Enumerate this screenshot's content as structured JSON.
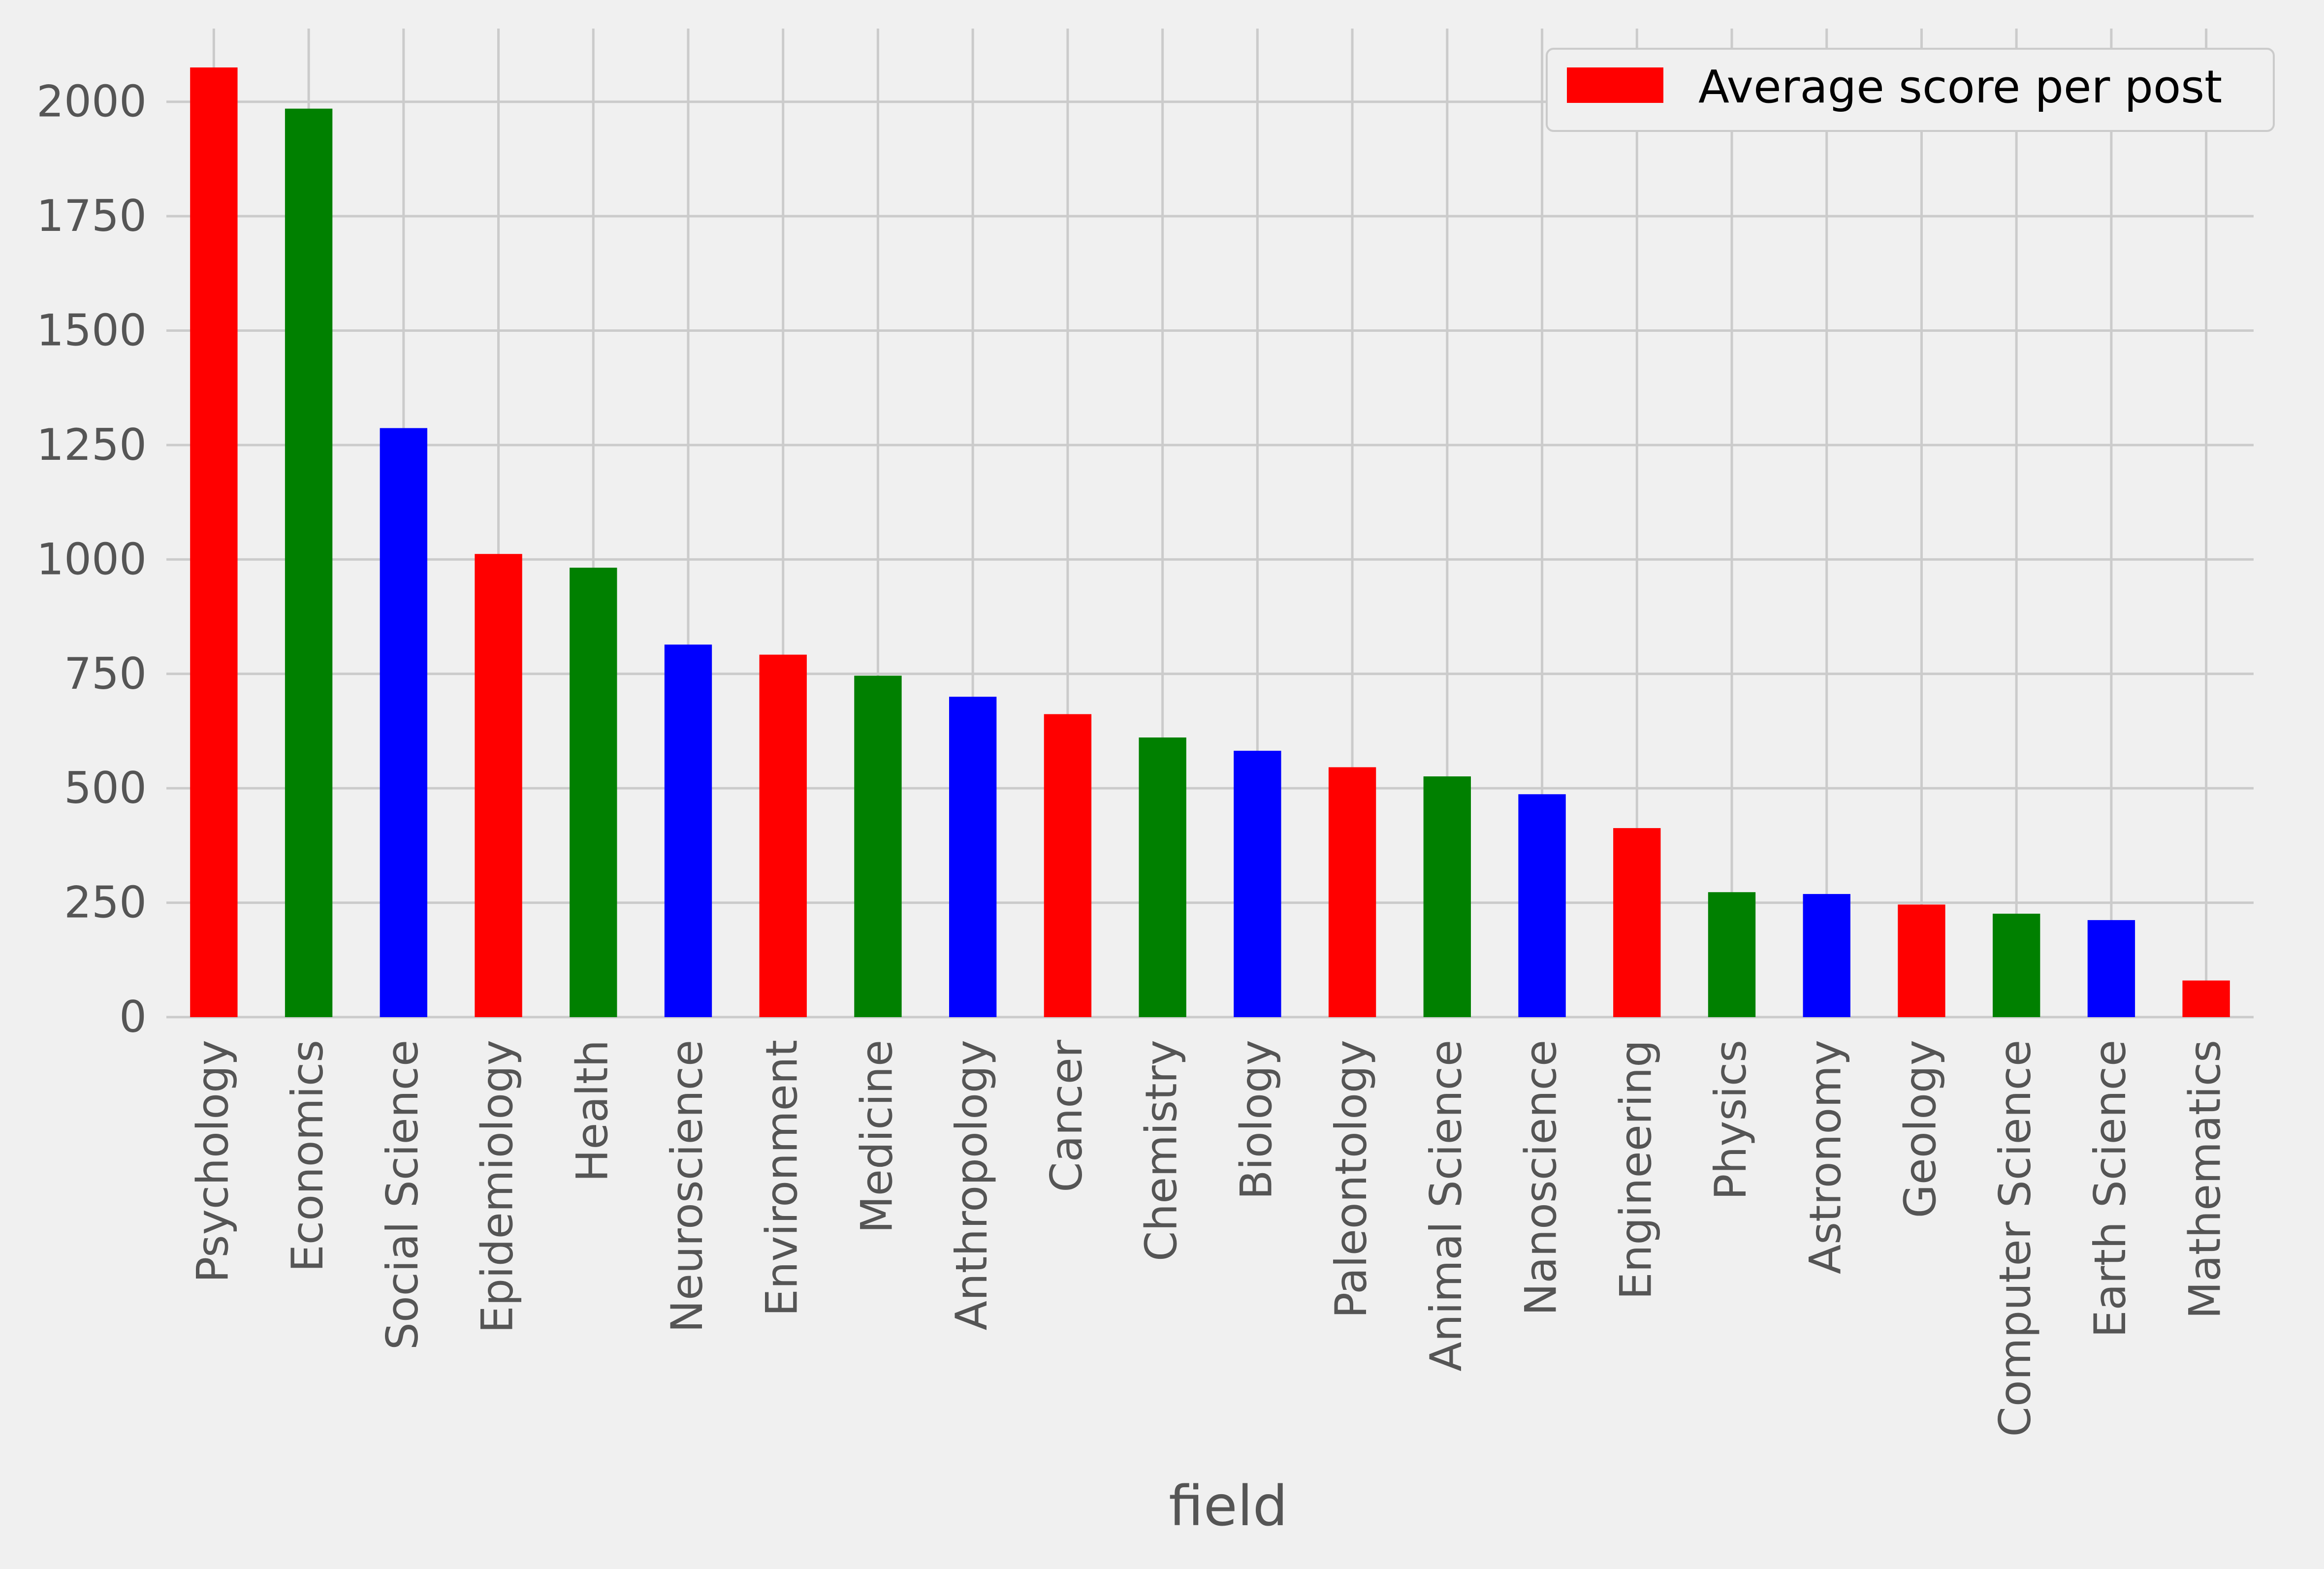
{
  "chart_data": {
    "type": "bar",
    "categories": [
      "Psychology",
      "Economics",
      "Social Science",
      "Epidemiology",
      "Health",
      "Neuroscience",
      "Environment",
      "Medicine",
      "Anthropology",
      "Cancer",
      "Chemistry",
      "Biology",
      "Paleontology",
      "Animal Science",
      "Nanoscience",
      "Engineering",
      "Physics",
      "Astronomy",
      "Geology",
      "Computer Science",
      "Earth Science",
      "Mathematics"
    ],
    "series": [
      {
        "name": "Average score per post",
        "values": [
          2075,
          1985,
          1287,
          1012,
          982,
          814,
          792,
          746,
          700,
          662,
          611,
          582,
          546,
          526,
          487,
          413,
          273,
          269,
          246,
          226,
          212,
          80
        ]
      }
    ],
    "bar_colors": [
      "#ff0000",
      "#008000",
      "#0000ff"
    ],
    "title": "",
    "xlabel": "field",
    "ylabel": "",
    "ylim": [
      0,
      2160
    ],
    "yticks": [
      0,
      250,
      500,
      750,
      1000,
      1250,
      1500,
      1750,
      2000
    ],
    "grid": true,
    "legend_position": "top-right"
  },
  "style": {
    "background": "#f0f0f0",
    "grid_color": "#cbcbcb",
    "tick_text_color": "#555555",
    "legend_text_color": "#000000",
    "legend_swatch_color": "#ff0000"
  }
}
